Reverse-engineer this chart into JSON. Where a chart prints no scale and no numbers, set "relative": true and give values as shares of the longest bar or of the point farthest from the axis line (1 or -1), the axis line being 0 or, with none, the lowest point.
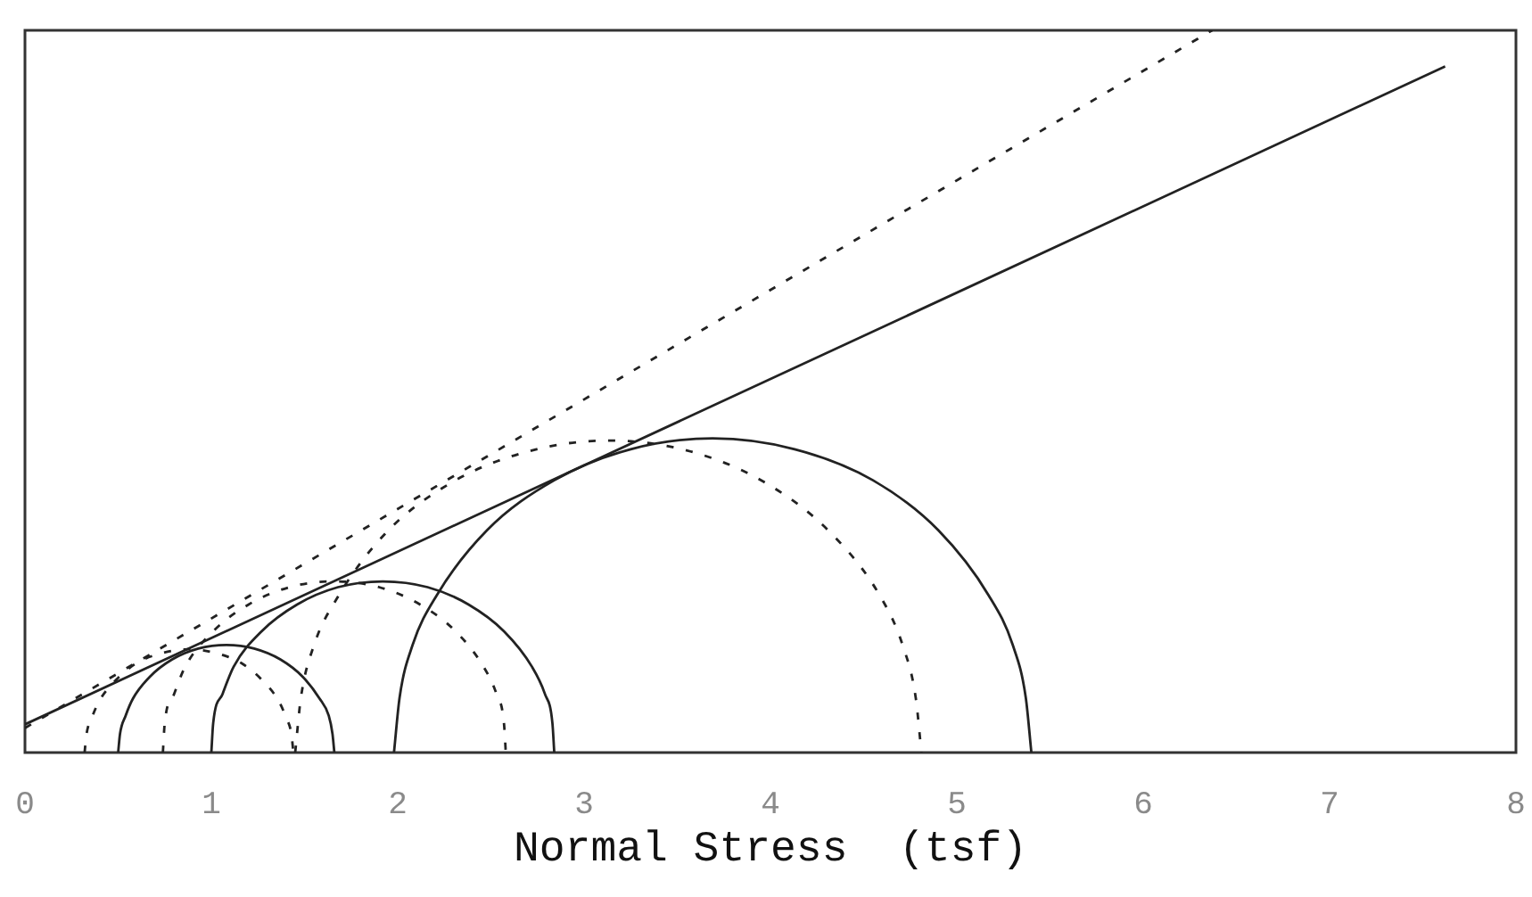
{
  "chart_data": {
    "type": "line",
    "relative": true,
    "xlabel": "Normal Stress  (tsf)",
    "xlim": [
      0,
      8
    ],
    "xticks": [
      0,
      1,
      2,
      3,
      4,
      5,
      6,
      7,
      8
    ],
    "series": [
      {
        "color": "#222222",
        "line_style": "solid",
        "x": [
          0,
          7.62
        ],
        "values": [
          0.039,
          0.95
        ]
      },
      {
        "color": "#222222",
        "line_style": "dashed",
        "x": [
          0,
          6.37
        ],
        "values": [
          0.034,
          1.0
        ]
      },
      {
        "color": "#222222",
        "line_style": "solid",
        "x": [
          0.5,
          0.51,
          0.54,
          0.58,
          0.67,
          0.79,
          0.93,
          1.08,
          1.23,
          1.37,
          1.49,
          1.58,
          1.63,
          1.65,
          1.66
        ],
        "values": [
          0,
          0.026,
          0.051,
          0.075,
          0.105,
          0.129,
          0.144,
          0.149,
          0.144,
          0.129,
          0.105,
          0.075,
          0.051,
          0.026,
          0
        ]
      },
      {
        "color": "#222222",
        "line_style": "solid",
        "x": [
          1.0,
          1.01,
          1.06,
          1.12,
          1.27,
          1.46,
          1.68,
          1.92,
          2.16,
          2.38,
          2.57,
          2.72,
          2.79,
          2.83,
          2.84
        ],
        "values": [
          0,
          0.041,
          0.081,
          0.119,
          0.168,
          0.205,
          0.229,
          0.237,
          0.229,
          0.205,
          0.168,
          0.119,
          0.081,
          0.041,
          0
        ]
      },
      {
        "color": "#222222",
        "line_style": "solid",
        "x": [
          1.98,
          2.01,
          2.08,
          2.21,
          2.48,
          2.84,
          3.25,
          3.69,
          4.13,
          4.55,
          4.9,
          5.17,
          5.3,
          5.37,
          5.4
        ],
        "values": [
          0,
          0.076,
          0.149,
          0.218,
          0.308,
          0.377,
          0.42,
          0.435,
          0.42,
          0.377,
          0.308,
          0.218,
          0.149,
          0.076,
          0
        ]
      },
      {
        "color": "#222222",
        "line_style": "dashed",
        "x": [
          0.32,
          0.33,
          0.36,
          0.4,
          0.49,
          0.6,
          0.74,
          0.88,
          1.02,
          1.16,
          1.27,
          1.36,
          1.4,
          1.43,
          1.44
        ],
        "values": [
          0,
          0.025,
          0.049,
          0.072,
          0.101,
          0.124,
          0.138,
          0.143,
          0.138,
          0.124,
          0.101,
          0.072,
          0.049,
          0.025,
          0
        ]
      },
      {
        "color": "#222222",
        "line_style": "dashed",
        "x": [
          0.74,
          0.75,
          0.8,
          0.86,
          1.01,
          1.2,
          1.42,
          1.66,
          1.9,
          2.12,
          2.31,
          2.46,
          2.53,
          2.57,
          2.58
        ],
        "values": [
          0,
          0.041,
          0.081,
          0.119,
          0.168,
          0.205,
          0.229,
          0.237,
          0.229,
          0.205,
          0.168,
          0.119,
          0.081,
          0.041,
          0
        ]
      },
      {
        "color": "#222222",
        "line_style": "dashed",
        "x": [
          1.45,
          1.48,
          1.55,
          1.68,
          1.94,
          2.29,
          2.7,
          3.13,
          3.57,
          3.97,
          4.32,
          4.59,
          4.71,
          4.78,
          4.81
        ],
        "values": [
          0,
          0.075,
          0.148,
          0.216,
          0.305,
          0.374,
          0.417,
          0.432,
          0.417,
          0.374,
          0.305,
          0.216,
          0.148,
          0.075,
          0
        ]
      }
    ]
  }
}
